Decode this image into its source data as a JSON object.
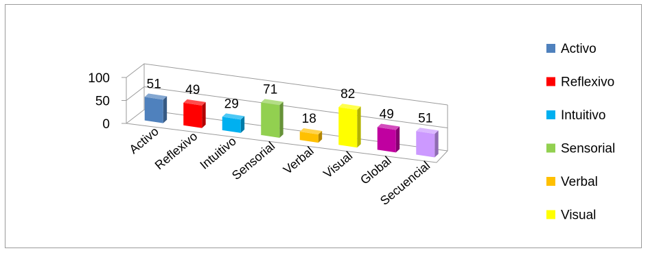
{
  "chart_data": {
    "type": "bar",
    "categories": [
      "Activo",
      "Reflexivo",
      "Intuitivo",
      "Sensorial",
      "Verbal",
      "Visual",
      "Global",
      "Secuencial"
    ],
    "values": [
      51,
      49,
      29,
      71,
      18,
      82,
      49,
      51
    ],
    "colors": [
      "#4f81bd",
      "#ff0000",
      "#00b0f0",
      "#92d050",
      "#ffc000",
      "#ffff00",
      "#c000a0",
      "#cc99ff"
    ],
    "y_ticks": [
      "0",
      "50",
      "100"
    ],
    "ylim": [
      0,
      100
    ],
    "legend": [
      "Activo",
      "Reflexivo",
      "Intuitivo",
      "Sensorial",
      "Verbal",
      "Visual"
    ],
    "legend_position": "right",
    "style": "3d-columns",
    "grid": true
  }
}
